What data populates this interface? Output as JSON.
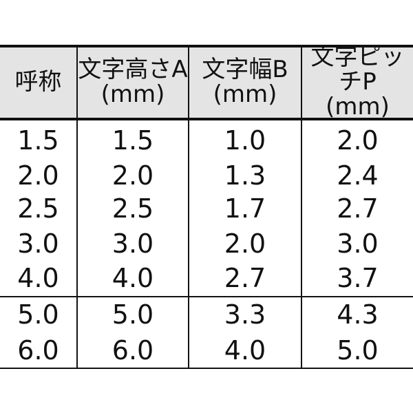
{
  "table": {
    "headers": [
      {
        "line1": "呼称",
        "line2": ""
      },
      {
        "line1": "文字高さA",
        "line2": "(mm)"
      },
      {
        "line1": "文字幅B",
        "line2": "(mm)"
      },
      {
        "line1": "文字ピッチP",
        "line2": "(mm)"
      }
    ],
    "rows": [
      [
        "1.5",
        "1.5",
        "1.0",
        "2.0"
      ],
      [
        "2.0",
        "2.0",
        "1.3",
        "2.4"
      ],
      [
        "2.5",
        "2.5",
        "1.7",
        "2.7"
      ],
      [
        "3.0",
        "3.0",
        "2.0",
        "3.0"
      ],
      [
        "4.0",
        "4.0",
        "2.7",
        "3.7"
      ],
      [
        "5.0",
        "5.0",
        "3.3",
        "4.3"
      ],
      [
        "6.0",
        "6.0",
        "4.0",
        "5.0"
      ]
    ]
  },
  "colors": {
    "header_bg": "#e4e4e4",
    "border": "#111111"
  }
}
